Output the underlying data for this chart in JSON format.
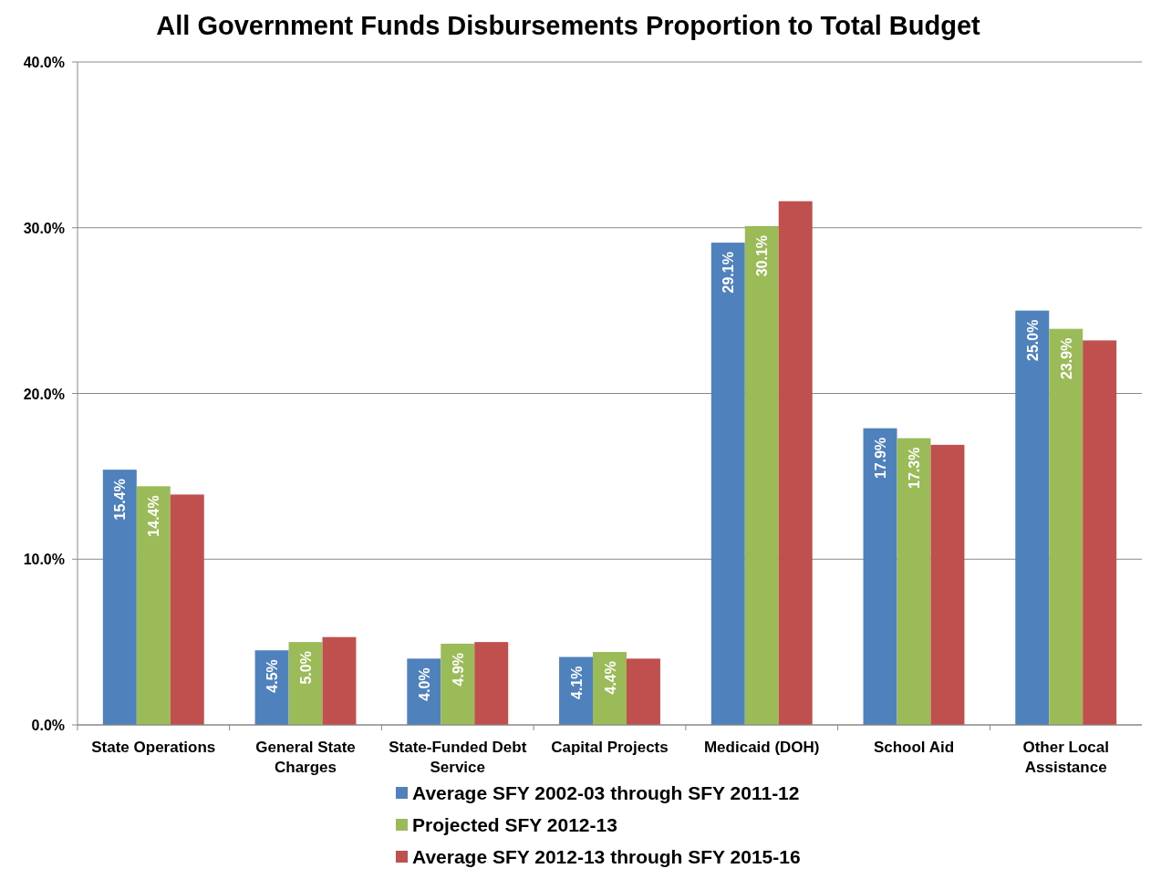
{
  "chart_data": {
    "type": "bar",
    "title": "All Government Funds Disbursements Proportion to Total Budget",
    "categories": [
      "State Operations",
      "General State Charges",
      "State-Funded Debt Service",
      "Capital Projects",
      "Medicaid (DOH)",
      "School Aid",
      "Other Local Assistance"
    ],
    "series": [
      {
        "name": "Average SFY 2002-03 through SFY 2011-12",
        "color": "#4f81bd",
        "values": [
          15.4,
          4.5,
          4.0,
          4.1,
          29.1,
          17.9,
          25.0
        ],
        "value_labels": [
          "15.4%",
          "4.5%",
          "4.0%",
          "4.1%",
          "29.1%",
          "17.9%",
          "25.0%"
        ]
      },
      {
        "name": "Projected SFY 2012-13",
        "color": "#9bbb59",
        "values": [
          14.4,
          5.0,
          4.9,
          4.4,
          30.1,
          17.3,
          23.9
        ],
        "value_labels": [
          "14.4%",
          "5.0%",
          "4.9%",
          "4.4%",
          "30.1%",
          "17.3%",
          "23.9%"
        ]
      },
      {
        "name": "Average SFY 2012-13 through SFY 2015-16",
        "color": "#c0504d",
        "values": [
          13.9,
          5.3,
          5.0,
          4.0,
          31.6,
          16.9,
          23.2
        ],
        "value_labels": [
          null,
          null,
          null,
          null,
          null,
          null,
          null
        ]
      }
    ],
    "ylim": [
      0,
      40
    ],
    "yticks": [
      {
        "value": 0,
        "label": "0.0%"
      },
      {
        "value": 10,
        "label": "10.0%"
      },
      {
        "value": 20,
        "label": "20.0%"
      },
      {
        "value": 30,
        "label": "30.0%"
      },
      {
        "value": 40,
        "label": "40.0%"
      }
    ],
    "grid": "y",
    "legend": "bottom"
  }
}
